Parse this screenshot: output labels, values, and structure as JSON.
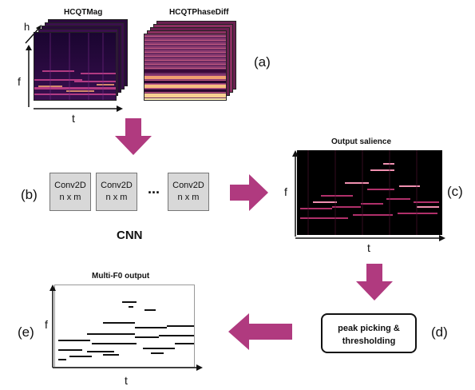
{
  "spectrogram_titles": {
    "mag": "HCQTMag",
    "phase": "HCQTPhaseDiff"
  },
  "axes": {
    "h": "h",
    "f": "f",
    "t": "t"
  },
  "labels": {
    "a": "(a)",
    "b": "(b)",
    "c": "(c)",
    "d": "(d)",
    "e": "(e)"
  },
  "cnn": {
    "layer_name": "Conv2D",
    "layer_size": "n x m",
    "ellipsis": "...",
    "caption": "CNN"
  },
  "output_salience": {
    "title": "Output salience"
  },
  "peak_picking": {
    "line1": "peak picking &",
    "line2": "thresholding"
  },
  "multi_f0": {
    "title": "Multi-F0 output"
  },
  "colors": {
    "arrow": "#b03a7f",
    "spec_dark": "#1a0530",
    "spec_mid": "#8a2a7a",
    "spec_hot": "#f0a070",
    "salience_bg": "#000000"
  }
}
